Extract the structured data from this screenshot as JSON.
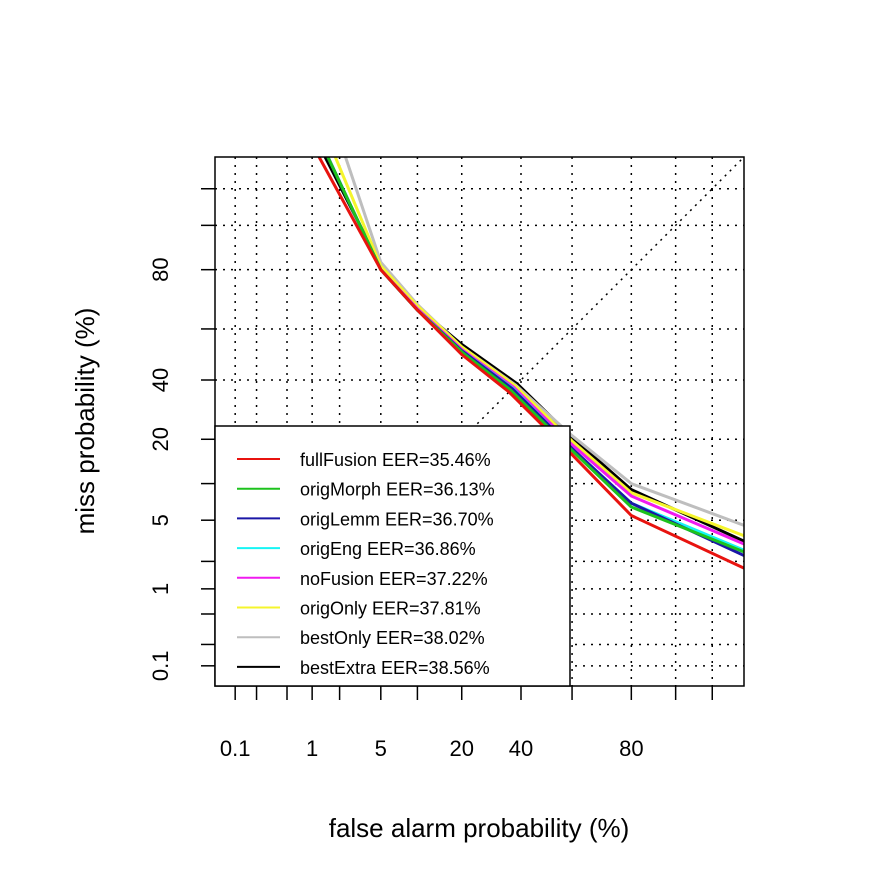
{
  "chart_data": {
    "type": "line",
    "plot_kind": "DET curve (normal deviate scale)",
    "xlabel": "false alarm probability (%)",
    "ylabel": "miss probability (%)",
    "x_ticks": [
      0.1,
      1,
      5,
      20,
      40,
      80
    ],
    "x_tick_labels": [
      "0.1",
      "1",
      "5",
      "20",
      "40",
      "80"
    ],
    "y_ticks": [
      0.1,
      1,
      5,
      20,
      40,
      80
    ],
    "y_tick_labels": [
      "0.1",
      "1",
      "5",
      "20",
      "40",
      "80"
    ],
    "grid_values": [
      0.1,
      0.2,
      0.5,
      1,
      2,
      5,
      10,
      20,
      40,
      60,
      80,
      90,
      95
    ],
    "x_range": [
      0.05,
      97.5
    ],
    "y_range": [
      0.05,
      97.5
    ],
    "grid": true,
    "diagonal_reference": true,
    "legend_position": "bottom-left",
    "series": [
      {
        "name": "fullFusion EER=35.46%",
        "color": "#E8130F",
        "x": [
          1.2,
          5,
          10,
          20,
          35.46,
          60,
          80,
          97.5
        ],
        "y": [
          97.5,
          80,
          67,
          50,
          35.46,
          16,
          5.5,
          1.7
        ]
      },
      {
        "name": "origMorph EER=36.13%",
        "color": "#1DC21D",
        "x": [
          1.5,
          5,
          10,
          20,
          36.13,
          60,
          80,
          97.5
        ],
        "y": [
          97.5,
          80,
          67,
          51,
          36.13,
          17,
          6.5,
          2.5
        ]
      },
      {
        "name": "origLemm EER=36.70%",
        "color": "#1B17A6",
        "x": [
          1.5,
          5,
          10,
          20,
          36.7,
          60,
          80,
          97.5
        ],
        "y": [
          97.5,
          80,
          67,
          51.5,
          36.7,
          17.5,
          7,
          2.3
        ]
      },
      {
        "name": "origEng EER=36.86%",
        "color": "#16F5F5",
        "x": [
          1.5,
          5,
          10,
          20,
          36.86,
          60,
          80,
          97.5
        ],
        "y": [
          97.5,
          80,
          67,
          51.5,
          36.86,
          17.5,
          7,
          2.6
        ]
      },
      {
        "name": "noFusion EER=37.22%",
        "color": "#F01BF0",
        "x": [
          1.5,
          5,
          10,
          20,
          37.22,
          60,
          80,
          97.5
        ],
        "y": [
          97.5,
          80,
          67.5,
          52,
          37.22,
          18.5,
          8,
          3
        ]
      },
      {
        "name": "origOnly EER=37.81%",
        "color": "#F5F52D",
        "x": [
          1.8,
          5,
          10,
          20,
          37.81,
          60,
          80,
          97.5
        ],
        "y": [
          97.5,
          81,
          68.5,
          53,
          37.81,
          19.5,
          8.5,
          3.6
        ]
      },
      {
        "name": "bestOnly EER=38.02%",
        "color": "#BEBEBE",
        "x": [
          2.3,
          5,
          10,
          20,
          38.02,
          60,
          80,
          97.5
        ],
        "y": [
          97.5,
          82,
          69,
          53,
          38.02,
          21,
          10,
          4.5
        ]
      },
      {
        "name": "bestExtra EER=38.56%",
        "color": "#000000",
        "x": [
          1.4,
          5,
          10,
          20,
          38.56,
          60,
          80,
          97.5
        ],
        "y": [
          97.5,
          81,
          68,
          54,
          38.56,
          20.5,
          9,
          3.2
        ]
      }
    ]
  }
}
